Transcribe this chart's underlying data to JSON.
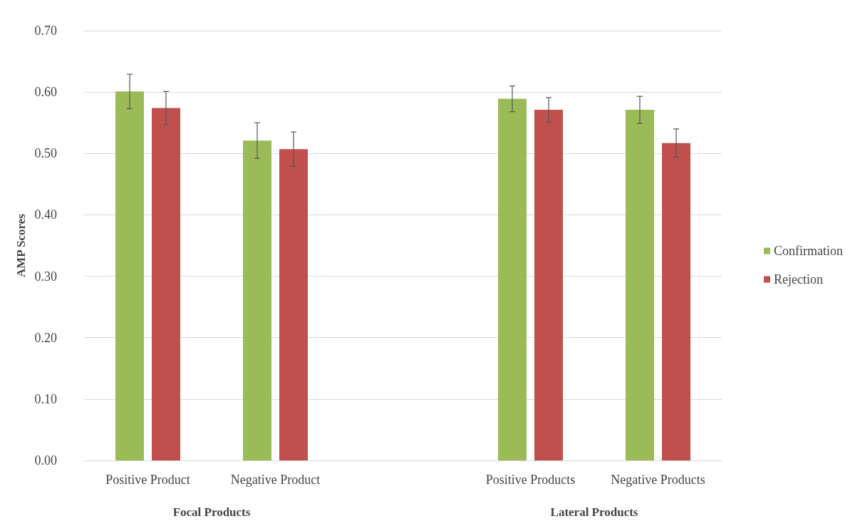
{
  "chart_data": {
    "type": "bar",
    "ylabel": "AMP Scores",
    "categories": [
      "Positive Product",
      "Negative Product",
      null,
      "Positive Products",
      "Negative Products"
    ],
    "series": [
      {
        "name": "Confirmation",
        "color": "#9bbb59",
        "values": [
          0.601,
          0.521,
          null,
          0.589,
          0.571
        ],
        "errors": [
          0.028,
          0.029,
          null,
          0.021,
          0.022
        ]
      },
      {
        "name": "Rejection",
        "color": "#c0504d",
        "values": [
          0.574,
          0.507,
          null,
          0.571,
          0.517
        ],
        "errors": [
          0.027,
          0.028,
          null,
          0.02,
          0.023
        ]
      }
    ],
    "annotations": [
      "Focal Products",
      "Lateral Products"
    ],
    "ylim": [
      0,
      0.7
    ],
    "yticks": [
      {
        "value": 0,
        "label": "0.00"
      },
      {
        "value": 0.1,
        "label": "0.10"
      },
      {
        "value": 0.2,
        "label": "0.20"
      },
      {
        "value": 0.3,
        "label": "0.30"
      },
      {
        "value": 0.4,
        "label": "0.40"
      },
      {
        "value": 0.5,
        "label": "0.50"
      },
      {
        "value": 0.6,
        "label": "0.60"
      },
      {
        "value": 0.7,
        "label": "0.70"
      }
    ],
    "grid": "y",
    "legend": "right"
  }
}
